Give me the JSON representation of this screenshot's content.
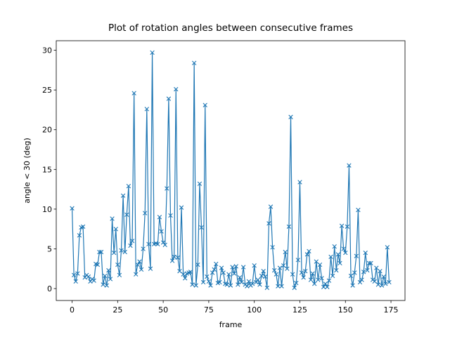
{
  "chart_data": {
    "type": "line",
    "title": "Plot of rotation angles between consecutive frames",
    "x_label": "frame",
    "y_label": "angle < 30 (deg)",
    "x": [
      0,
      1,
      2,
      3,
      4,
      5,
      6,
      7,
      8,
      9,
      10,
      11,
      12,
      13,
      14,
      15,
      16,
      17,
      18,
      19,
      20,
      21,
      22,
      23,
      24,
      25,
      26,
      27,
      28,
      29,
      30,
      31,
      32,
      33,
      34,
      35,
      36,
      37,
      38,
      39,
      40,
      41,
      42,
      43,
      44,
      45,
      46,
      47,
      48,
      49,
      50,
      51,
      52,
      53,
      54,
      55,
      56,
      57,
      58,
      59,
      60,
      61,
      62,
      63,
      64,
      65,
      66,
      67,
      68,
      69,
      70,
      71,
      72,
      73,
      74,
      75,
      76,
      77,
      78,
      79,
      80,
      81,
      82,
      83,
      84,
      85,
      86,
      87,
      88,
      89,
      90,
      91,
      92,
      93,
      94,
      95,
      96,
      97,
      98,
      99,
      100,
      101,
      102,
      103,
      104,
      105,
      106,
      107,
      108,
      109,
      110,
      111,
      112,
      113,
      114,
      115,
      116,
      117,
      118,
      119,
      120,
      121,
      122,
      123,
      124,
      125,
      126,
      127,
      128,
      129,
      130,
      131,
      132,
      133,
      134,
      135,
      136,
      137,
      138,
      139,
      140,
      141,
      142,
      143,
      144,
      145,
      146,
      147,
      148,
      149,
      150,
      151,
      152,
      153,
      154,
      155,
      156,
      157,
      158,
      159,
      160,
      161,
      162,
      163,
      164,
      165,
      166,
      167,
      168,
      169,
      170,
      171,
      172,
      173,
      174
    ],
    "series": [
      {
        "name": "rotation angle",
        "color": "#1f77b4",
        "marker": "x",
        "values": [
          10.1,
          1.7,
          0.9,
          1.9,
          6.7,
          7.7,
          7.8,
          1.4,
          1.7,
          1.5,
          0.9,
          1.2,
          1.0,
          3.1,
          3.0,
          4.6,
          4.6,
          0.5,
          1.6,
          0.4,
          2.3,
          1.2,
          8.8,
          4.5,
          7.5,
          3.0,
          1.7,
          4.8,
          11.7,
          4.6,
          9.3,
          12.9,
          5.4,
          6.0,
          24.6,
          1.8,
          3.0,
          3.4,
          2.4,
          5.0,
          9.5,
          22.6,
          5.6,
          2.5,
          29.7,
          5.6,
          5.7,
          5.6,
          9.0,
          7.2,
          5.8,
          5.5,
          12.6,
          23.9,
          9.2,
          3.5,
          4.0,
          25.1,
          3.9,
          2.2,
          10.2,
          1.8,
          1.3,
          1.9,
          2.0,
          2.1,
          0.5,
          28.4,
          0.4,
          3.0,
          13.2,
          7.7,
          0.8,
          23.1,
          1.5,
          0.9,
          0.4,
          2.0,
          2.4,
          3.1,
          0.7,
          0.8,
          2.6,
          2.0,
          0.6,
          0.5,
          1.8,
          0.4,
          2.7,
          1.9,
          2.8,
          0.5,
          1.4,
          0.8,
          2.7,
          0.5,
          0.3,
          0.9,
          0.4,
          0.6,
          2.9,
          0.8,
          1.1,
          0.5,
          1.6,
          2.2,
          1.5,
          0.1,
          8.2,
          10.3,
          5.2,
          2.3,
          1.8,
          0.3,
          2.6,
          0.3,
          2.9,
          4.6,
          2.5,
          7.8,
          21.6,
          1.8,
          0.1,
          0.7,
          3.6,
          13.4,
          2.0,
          1.4,
          2.2,
          4.3,
          4.7,
          1.1,
          1.9,
          0.6,
          3.4,
          1.1,
          3.0,
          1.3,
          0.2,
          0.6,
          0.2,
          1.0,
          4.0,
          1.6,
          5.3,
          2.3,
          4.3,
          3.2,
          7.9,
          5.0,
          4.5,
          7.8,
          15.5,
          1.6,
          0.4,
          2.0,
          4.1,
          9.9,
          0.8,
          1.1,
          2.1,
          4.5,
          2.3,
          3.2,
          3.2,
          1.1,
          0.9,
          2.6,
          0.5,
          2.2,
          0.4,
          1.5,
          0.6,
          5.2,
          0.8
        ]
      }
    ],
    "xlim": [
      -8.7,
      182.7
    ],
    "xticks": [
      0,
      25,
      50,
      75,
      100,
      125,
      150,
      175
    ],
    "ylim": [
      -1.5,
      31.2
    ],
    "yticks": [
      0,
      5,
      10,
      15,
      20,
      25,
      30
    ],
    "grid": false
  }
}
